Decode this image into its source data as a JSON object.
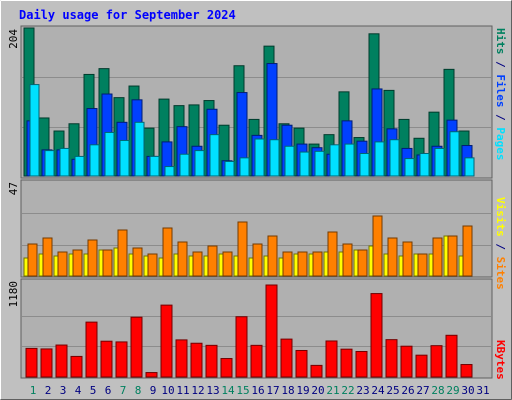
{
  "chart_data": {
    "type": "bar",
    "title": "Daily usage for September 2024",
    "x": [
      1,
      2,
      3,
      4,
      5,
      6,
      7,
      8,
      9,
      10,
      11,
      12,
      13,
      14,
      15,
      16,
      17,
      18,
      19,
      20,
      21,
      22,
      23,
      24,
      25,
      26,
      27,
      28,
      29,
      30,
      31
    ],
    "x_labels": [
      "1",
      "2",
      "3",
      "4",
      "5",
      "6",
      "7",
      "8",
      "9",
      "10",
      "11",
      "12",
      "13",
      "14",
      "15",
      "16",
      "17",
      "18",
      "19",
      "20",
      "21",
      "22",
      "23",
      "24",
      "25",
      "26",
      "27",
      "28",
      "29",
      "30",
      "31"
    ],
    "weekend_days": [
      1,
      7,
      8,
      14,
      15,
      21,
      22,
      28,
      29
    ],
    "panels": [
      {
        "id": "hits_panel",
        "ymax_label": "204",
        "ymax": 204,
        "right_labels": [
          "Hits",
          "Files",
          "Pages"
        ],
        "series": [
          {
            "name": "Hits",
            "values": [
              204,
              80,
              62,
              72,
              140,
              148,
              108,
              124,
              66,
              106,
              97,
              98,
              104,
              70,
              152,
              78,
              179,
              72,
              66,
              44,
              57,
              116,
              53,
              196,
              118,
              78,
              52,
              88,
              147,
              62,
              0
            ]
          },
          {
            "name": "Files",
            "values": [
              76,
              36,
              36,
              23,
              93,
              113,
              74,
              105,
              27,
              47,
              68,
              41,
              92,
              21,
              115,
              56,
              155,
              70,
              44,
              39,
              30,
              76,
              48,
              120,
              65,
              38,
              29,
              41,
              77,
              42,
              0
            ]
          },
          {
            "name": "Pages",
            "values": [
              126,
              35,
              38,
              27,
              43,
              60,
              49,
              74,
              27,
              13,
              30,
              35,
              57,
              20,
              25,
              51,
              50,
              41,
              33,
              34,
              43,
              44,
              31,
              47,
              50,
              24,
              31,
              38,
              61,
              25,
              0
            ]
          }
        ]
      },
      {
        "id": "visits_panel",
        "ymax_label": "47",
        "ymax": 47,
        "right_labels": [
          "Visits",
          "Sites"
        ],
        "series": [
          {
            "name": "Visits",
            "values": [
              9,
              11,
              10,
              11,
              11,
              13,
              14,
              11,
              10,
              9,
              11,
              10,
              10,
              11,
              10,
              9,
              10,
              9,
              11,
              11,
              12,
              12,
              13,
              15,
              11,
              10,
              11,
              11,
              20,
              10,
              0
            ]
          },
          {
            "name": "Sites",
            "values": [
              16,
              19,
              12,
              13,
              18,
              13,
              23,
              14,
              11,
              24,
              17,
              12,
              15,
              12,
              27,
              16,
              20,
              12,
              12,
              12,
              22,
              16,
              13,
              30,
              19,
              17,
              11,
              19,
              20,
              25,
              0
            ]
          }
        ]
      },
      {
        "id": "kbytes_panel",
        "ymax_label": "1180",
        "ymax": 1180,
        "right_labels": [
          "KBytes"
        ],
        "series": [
          {
            "name": "KBytes",
            "values": [
              367,
              360,
              410,
              264,
              704,
              459,
              450,
              767,
              57,
              922,
              476,
              433,
              406,
              237,
              773,
              406,
              1180,
              486,
              340,
              149,
              462,
              357,
              327,
              1070,
              479,
              395,
              280,
              402,
              535,
              160,
              0
            ]
          }
        ]
      }
    ]
  },
  "colors": {
    "background": "#c0c0c0",
    "plot": "#b0b0b0",
    "title": "#0000ff",
    "hits": "#00805f",
    "files": "#0040ff",
    "pages": "#00e0ff",
    "visits": "#ffff00",
    "sites": "#ff8000",
    "kbytes": "#ff0000",
    "weekday_label": "#000080",
    "weekend_label": "#00805f",
    "separator_slash": "#000080"
  }
}
